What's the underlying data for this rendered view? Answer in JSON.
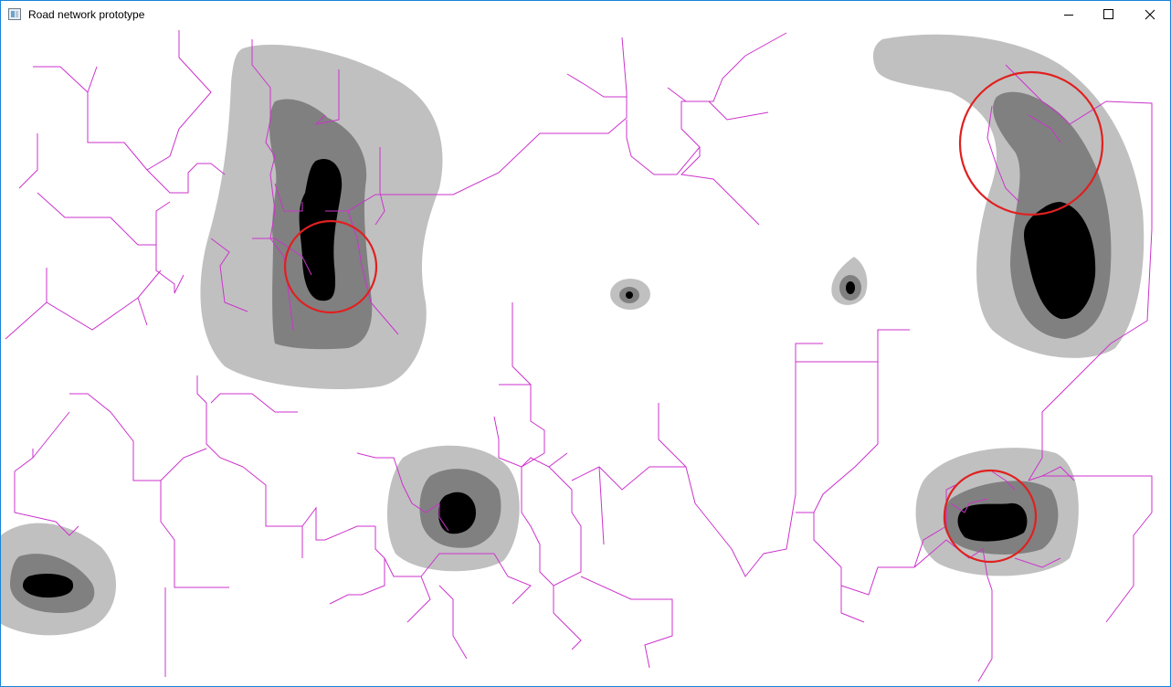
{
  "window": {
    "title": "Road network prototype",
    "icon": "app-window-icon",
    "controls": {
      "minimize_icon": "minimize-icon",
      "maximize_icon": "maximize-icon",
      "close_icon": "close-icon"
    }
  },
  "canvas": {
    "colors": {
      "background": "#ffffff",
      "density_low": "#c0c0c0",
      "density_mid": "#808080",
      "density_high": "#000000",
      "road": "#cc33cc",
      "marker": "#e02020"
    },
    "highlight_markers": 4
  }
}
